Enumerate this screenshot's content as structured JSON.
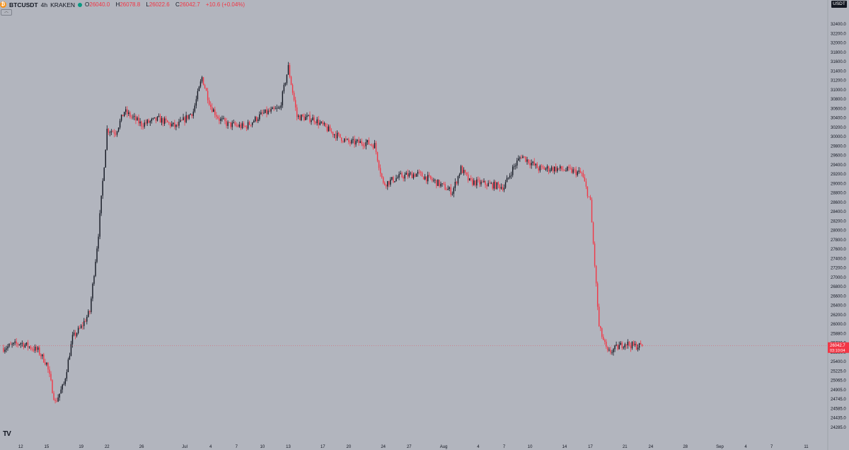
{
  "header": {
    "symbol": "BTCUSDT",
    "timeframe": "4h",
    "exchange": "KRAKEN",
    "open_label": "O",
    "open": "26040.0",
    "high_label": "H",
    "high": "26078.8",
    "low_label": "L",
    "low": "26022.6",
    "close_label": "C",
    "close": "26042.7",
    "change": "+10.6 (+0.04%)",
    "status_color": "#089981"
  },
  "currency_label": "USDT",
  "logo_text": "TV",
  "colors": {
    "up": "#131722",
    "down": "#f23645",
    "background": "#b2b5be"
  },
  "price_tag": {
    "price": "26042.7",
    "countdown": "03:10:04",
    "value": 26042.7
  },
  "chart_data": {
    "type": "candlestick",
    "symbol": "BTCUSDT",
    "interval": "4h",
    "ylim": [
      24285,
      32500
    ],
    "y_ticks": [
      "32400.0",
      "32200.0",
      "32000.0",
      "31800.0",
      "31600.0",
      "31400.0",
      "31200.0",
      "31000.0",
      "30800.0",
      "30600.0",
      "30400.0",
      "30200.0",
      "30000.0",
      "29800.0",
      "29600.0",
      "29400.0",
      "29200.0",
      "29000.0",
      "28800.0",
      "28600.0",
      "28400.0",
      "28200.0",
      "28000.0",
      "27800.0",
      "27600.0",
      "27400.0",
      "27200.0",
      "27000.0",
      "26800.0",
      "26600.0",
      "26400.0",
      "26200.0",
      "26000.0",
      "25880.0",
      "25720.0",
      "25560.0",
      "25400.0",
      "25225.0",
      "25065.0",
      "24905.0",
      "24745.0",
      "24585.0",
      "24435.0",
      "24285.0"
    ],
    "x_ticks": [
      "12",
      "15",
      "19",
      "22",
      "26",
      "Jul",
      "4",
      "7",
      "10",
      "13",
      "17",
      "20",
      "24",
      "27",
      "Aug",
      "4",
      "7",
      "10",
      "14",
      "17",
      "21",
      "24",
      "28",
      "Sep",
      "4",
      "7",
      "11"
    ],
    "x_tick_days": [
      12,
      15,
      19,
      22,
      26,
      31,
      34,
      37,
      40,
      43,
      47,
      50,
      54,
      57,
      61,
      65,
      68,
      71,
      75,
      78,
      82,
      85,
      89,
      93,
      96,
      99,
      103
    ],
    "days_start": "2023-06-11",
    "candles_per_day": 6,
    "anchors": [
      [
        10,
        26000
      ],
      [
        12,
        26100
      ],
      [
        14,
        25950
      ],
      [
        15,
        25700
      ],
      [
        16,
        24950
      ],
      [
        17,
        25300
      ],
      [
        18,
        26200
      ],
      [
        19,
        26400
      ],
      [
        20,
        26700
      ],
      [
        21,
        28200
      ],
      [
        22,
        30200
      ],
      [
        23,
        30150
      ],
      [
        24,
        30550
      ],
      [
        26,
        30300
      ],
      [
        28,
        30400
      ],
      [
        30,
        30250
      ],
      [
        32,
        30550
      ],
      [
        33,
        31200
      ],
      [
        34,
        30650
      ],
      [
        35,
        30400
      ],
      [
        36,
        30300
      ],
      [
        38,
        30250
      ],
      [
        40,
        30500
      ],
      [
        42,
        30600
      ],
      [
        43,
        31400
      ],
      [
        44,
        30450
      ],
      [
        46,
        30400
      ],
      [
        48,
        30150
      ],
      [
        50,
        29950
      ],
      [
        52,
        29950
      ],
      [
        53,
        29900
      ],
      [
        54,
        29150
      ],
      [
        56,
        29300
      ],
      [
        58,
        29350
      ],
      [
        60,
        29200
      ],
      [
        62,
        29000
      ],
      [
        63,
        29450
      ],
      [
        64,
        29200
      ],
      [
        66,
        29150
      ],
      [
        68,
        29100
      ],
      [
        69,
        29450
      ],
      [
        70,
        29700
      ],
      [
        72,
        29450
      ],
      [
        74,
        29450
      ],
      [
        76,
        29400
      ],
      [
        77,
        29350
      ],
      [
        78,
        28800
      ],
      [
        79,
        26400
      ],
      [
        80,
        25900
      ],
      [
        81,
        26000
      ],
      [
        82,
        26100
      ],
      [
        83,
        26040
      ],
      [
        84,
        26042.7
      ]
    ],
    "last": {
      "open": 26040.0,
      "high": 26078.8,
      "low": 26022.6,
      "close": 26042.7
    }
  }
}
